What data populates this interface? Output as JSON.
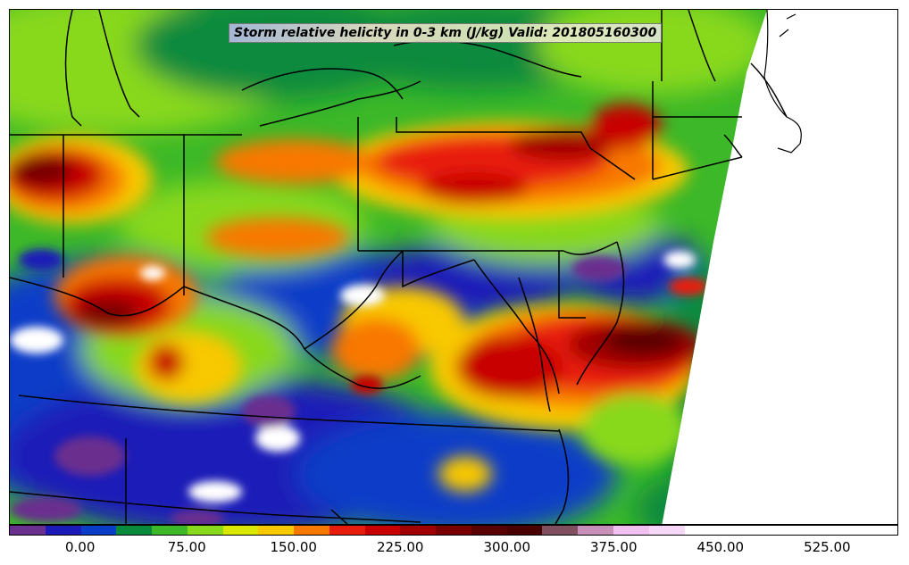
{
  "map": {
    "title": "Storm relative helicity in 0-3 km (J/kg) Valid: 201805160300",
    "variable": "Storm relative helicity 0-3 km",
    "units": "J/kg",
    "valid_time": "201805160300"
  },
  "colorbar": {
    "min": -50,
    "max": 575,
    "step": 25,
    "tick_labels": [
      "0.00",
      "75.00",
      "150.00",
      "225.00",
      "300.00",
      "375.00",
      "450.00",
      "525.00"
    ],
    "tick_values": [
      0,
      75,
      150,
      225,
      300,
      375,
      450,
      525
    ],
    "colors": [
      "#6a2f8f",
      "#1c1ab8",
      "#0a3ec8",
      "#0a8a3c",
      "#3cb828",
      "#88d81c",
      "#d8e800",
      "#f8c800",
      "#f87800",
      "#e81c0c",
      "#c80000",
      "#a00000",
      "#780000",
      "#580000",
      "#480000",
      "#805060",
      "#c890b8",
      "#f0c0f0",
      "#f8d8f8",
      "#ffffff",
      "#ffffff",
      "#ffffff",
      "#ffffff",
      "#ffffff",
      "#ffffff"
    ]
  }
}
